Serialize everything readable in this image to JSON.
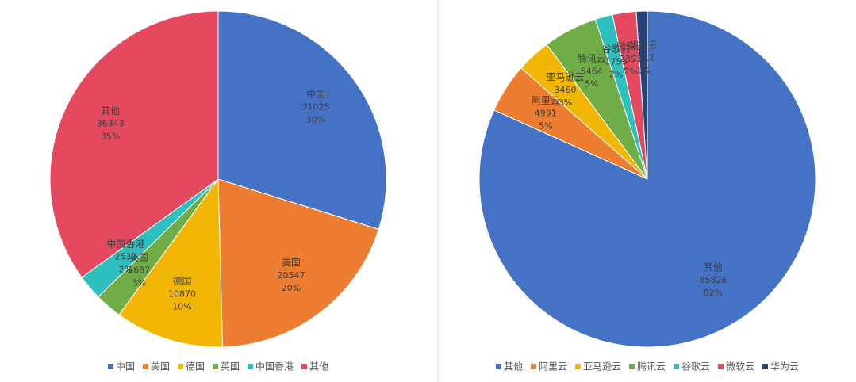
{
  "chart_data": [
    {
      "type": "pie",
      "categories": [
        "中国",
        "美国",
        "德国",
        "英国",
        "中国香港",
        "其他"
      ],
      "values": [
        31025,
        20547,
        10870,
        2687,
        2530,
        36343
      ],
      "percent_labels": [
        "30%",
        "20%",
        "10%",
        "3%",
        "2%",
        "35%"
      ],
      "colors": [
        "#4472c4",
        "#ed7d31",
        "#f2b705",
        "#70ad47",
        "#2ebfbf",
        "#e4495f"
      ]
    },
    {
      "type": "pie",
      "categories": [
        "其他",
        "阿里云",
        "亚马逊云",
        "腾讯云",
        "谷歌云",
        "微软云",
        "华为云"
      ],
      "values": [
        85826,
        4991,
        3460,
        5464,
        1753,
        2391,
        1112
      ],
      "percent_labels": [
        "82%",
        "5%",
        "3%",
        "5%",
        "2%",
        "2%",
        "1%"
      ],
      "colors": [
        "#4472c4",
        "#ed7d31",
        "#f2b705",
        "#70ad47",
        "#2ebfbf",
        "#e4495f",
        "#264478"
      ]
    }
  ]
}
